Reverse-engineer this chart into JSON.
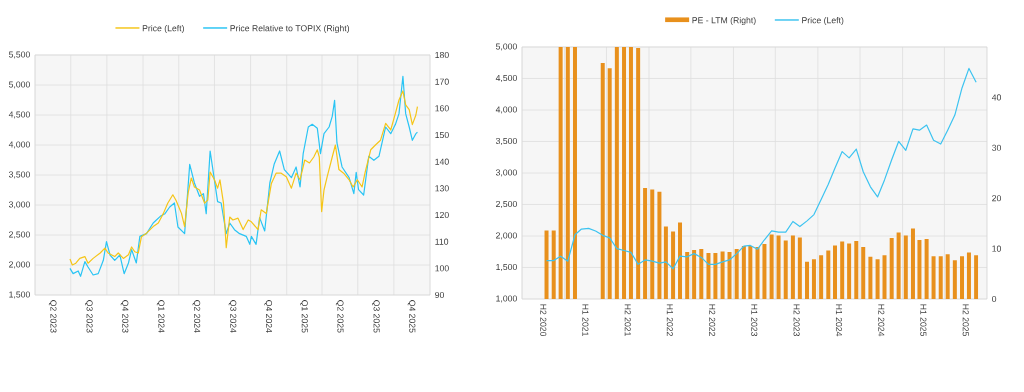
{
  "chart_data": [
    {
      "type": "line",
      "legend": "top",
      "grid": true,
      "xlim": [
        "2023-04-01",
        "2026-01-01"
      ],
      "xticks": [
        {
          "value": "2023-04-01",
          "label": null
        },
        {
          "value": "2023-05-16",
          "label": "Q2 2023"
        },
        {
          "value": "2023-07-01",
          "label": null
        },
        {
          "value": "2023-08-16",
          "label": "Q3 2023"
        },
        {
          "value": "2023-10-01",
          "label": null
        },
        {
          "value": "2023-11-15",
          "label": "Q4 2023"
        },
        {
          "value": "2024-01-01",
          "label": null
        },
        {
          "value": "2024-02-15",
          "label": "Q1 2024"
        },
        {
          "value": "2024-04-01",
          "label": null
        },
        {
          "value": "2024-05-16",
          "label": "Q2 2024"
        },
        {
          "value": "2024-07-01",
          "label": null
        },
        {
          "value": "2024-08-16",
          "label": "Q3 2024"
        },
        {
          "value": "2024-10-01",
          "label": null
        },
        {
          "value": "2024-11-15",
          "label": "Q4 2024"
        },
        {
          "value": "2025-01-01",
          "label": null
        },
        {
          "value": "2025-02-14",
          "label": "Q1 2025"
        },
        {
          "value": "2025-04-01",
          "label": null
        },
        {
          "value": "2025-05-16",
          "label": "Q2 2025"
        },
        {
          "value": "2025-07-01",
          "label": null
        },
        {
          "value": "2025-08-16",
          "label": "Q3 2025"
        },
        {
          "value": "2025-10-01",
          "label": null
        },
        {
          "value": "2025-11-15",
          "label": "Q4 2025"
        }
      ],
      "ylim": [
        1500,
        5500
      ],
      "yticks": [
        {
          "value": 1500,
          "label": "1,500"
        },
        {
          "value": 2000,
          "label": "2,000"
        },
        {
          "value": 2500,
          "label": "2,500"
        },
        {
          "value": 3000,
          "label": "3,000"
        },
        {
          "value": 3500,
          "label": "3,500"
        },
        {
          "value": 4000,
          "label": "4,000"
        },
        {
          "value": 4500,
          "label": "4,500"
        },
        {
          "value": 5000,
          "label": "5,000"
        },
        {
          "value": 5500,
          "label": "5,500"
        }
      ],
      "y2lim": [
        90,
        180
      ],
      "y2ticks": [
        90,
        100,
        110,
        120,
        130,
        140,
        150,
        160,
        170,
        180
      ],
      "series": [
        {
          "name": "Price (Left)",
          "color": "#f5c518",
          "x": [
            "2023-06-29",
            "2023-07-05",
            "2023-07-14",
            "2023-07-24",
            "2023-08-06",
            "2023-08-14",
            "2023-08-27",
            "2023-09-14",
            "2023-09-26",
            "2023-10-04",
            "2023-10-21",
            "2023-10-30",
            "2023-11-12",
            "2023-11-25",
            "2023-12-03",
            "2023-12-11",
            "2023-12-20",
            "2023-12-28",
            "2024-01-10",
            "2024-01-27",
            "2024-02-09",
            "2024-02-22",
            "2024-03-04",
            "2024-03-17",
            "2024-03-25",
            "2024-04-08",
            "2024-04-16",
            "2024-04-25",
            "2024-05-03",
            "2024-05-11",
            "2024-05-24",
            "2024-06-06",
            "2024-06-14",
            "2024-06-20",
            "2024-07-01",
            "2024-07-09",
            "2024-07-15",
            "2024-07-24",
            "2024-07-31",
            "2024-08-09",
            "2024-08-17",
            "2024-08-30",
            "2024-09-12",
            "2024-09-25",
            "2024-10-03",
            "2024-10-20",
            "2024-10-28",
            "2024-11-10",
            "2024-11-23",
            "2024-12-05",
            "2024-12-18",
            "2024-12-31",
            "2025-01-13",
            "2025-01-25",
            "2025-02-04",
            "2025-02-16",
            "2025-02-28",
            "2025-03-11",
            "2025-03-20",
            "2025-03-25",
            "2025-03-31",
            "2025-04-06",
            "2025-04-14",
            "2025-04-27",
            "2025-05-05",
            "2025-05-14",
            "2025-05-26",
            "2025-06-09",
            "2025-06-19",
            "2025-06-30",
            "2025-07-12",
            "2025-07-20",
            "2025-08-03",
            "2025-08-15",
            "2025-08-28",
            "2025-09-10",
            "2025-09-23",
            "2025-10-05",
            "2025-10-14",
            "2025-10-24",
            "2025-10-31",
            "2025-11-09",
            "2025-11-17",
            "2025-11-26",
            "2025-11-30"
          ],
          "values": [
            2100,
            2000,
            2030,
            2110,
            2140,
            2030,
            2110,
            2200,
            2280,
            2200,
            2140,
            2200,
            2110,
            2170,
            2300,
            2220,
            2200,
            2470,
            2530,
            2640,
            2700,
            2860,
            3030,
            3170,
            3080,
            2860,
            2640,
            3200,
            3450,
            3300,
            3250,
            3030,
            3080,
            3550,
            3420,
            3280,
            3420,
            3030,
            2290,
            2800,
            2750,
            2780,
            2590,
            2750,
            2720,
            2590,
            2920,
            2860,
            3360,
            3530,
            3530,
            3470,
            3280,
            3530,
            3420,
            3750,
            3700,
            3800,
            3920,
            3800,
            2890,
            3250,
            3470,
            3800,
            4000,
            3590,
            3530,
            3420,
            3300,
            3420,
            3300,
            3550,
            3920,
            4000,
            4080,
            4360,
            4250,
            4530,
            4750,
            4900,
            4670,
            4590,
            4340,
            4500,
            4640
          ]
        },
        {
          "name": "Price Relative to TOPIX (Right)",
          "color": "#29c4f4",
          "axis": "y2",
          "x": [
            "2023-06-29",
            "2023-07-07",
            "2023-07-20",
            "2023-07-26",
            "2023-08-06",
            "2023-08-14",
            "2023-08-27",
            "2023-09-09",
            "2023-09-22",
            "2023-09-30",
            "2023-10-09",
            "2023-10-21",
            "2023-11-03",
            "2023-11-14",
            "2023-11-25",
            "2023-12-03",
            "2023-12-15",
            "2023-12-24",
            "2024-01-10",
            "2024-01-27",
            "2024-02-14",
            "2024-02-26",
            "2024-03-09",
            "2024-03-21",
            "2024-03-30",
            "2024-04-16",
            "2024-04-29",
            "2024-05-11",
            "2024-05-24",
            "2024-06-03",
            "2024-06-10",
            "2024-06-20",
            "2024-07-01",
            "2024-07-09",
            "2024-07-18",
            "2024-07-31",
            "2024-08-09",
            "2024-08-21",
            "2024-09-03",
            "2024-09-20",
            "2024-09-29",
            "2024-10-03",
            "2024-10-15",
            "2024-10-24",
            "2024-11-06",
            "2024-11-19",
            "2024-11-30",
            "2024-12-14",
            "2024-12-26",
            "2025-01-13",
            "2025-01-25",
            "2025-02-04",
            "2025-02-12",
            "2025-02-25",
            "2025-03-07",
            "2025-03-20",
            "2025-03-28",
            "2025-04-06",
            "2025-04-19",
            "2025-04-27",
            "2025-05-03",
            "2025-05-09",
            "2025-05-22",
            "2025-06-09",
            "2025-06-21",
            "2025-06-27",
            "2025-07-03",
            "2025-07-16",
            "2025-07-29",
            "2025-08-11",
            "2025-08-24",
            "2025-09-10",
            "2025-09-23",
            "2025-10-05",
            "2025-10-14",
            "2025-10-24",
            "2025-10-31",
            "2025-11-09",
            "2025-11-17",
            "2025-11-26",
            "2025-11-30"
          ],
          "values": [
            100,
            98,
            99,
            97,
            102.5,
            100.5,
            97.5,
            98,
            103,
            110,
            105,
            103,
            105,
            98,
            102,
            107,
            102,
            112,
            113,
            117,
            119.5,
            120.5,
            123,
            124.5,
            115.5,
            113,
            139,
            132,
            127,
            128,
            120.5,
            144,
            133,
            125,
            124.5,
            113,
            117,
            114.5,
            113,
            112,
            109,
            112,
            109,
            119,
            114,
            132,
            139,
            144,
            137,
            134,
            138,
            130.5,
            143,
            153,
            154,
            152.5,
            143,
            150.5,
            153,
            157,
            163,
            147,
            138,
            134,
            128,
            136,
            129.5,
            127.5,
            142,
            140.5,
            142,
            153,
            150.5,
            154,
            158,
            172,
            158,
            153,
            148,
            150.5,
            151
          ]
        }
      ]
    },
    {
      "type": "bar",
      "legend": "top",
      "grid": true,
      "xlim": [
        "2020-07-01",
        "2026-01-01"
      ],
      "xticks": [
        {
          "value": "2020-07-01",
          "label": null
        },
        {
          "value": "2020-10-01",
          "label": "H2 2020"
        },
        {
          "value": "2021-01-01",
          "label": null
        },
        {
          "value": "2021-04-01",
          "label": "H1 2021"
        },
        {
          "value": "2021-07-01",
          "label": null
        },
        {
          "value": "2021-10-01",
          "label": "H2 2021"
        },
        {
          "value": "2022-01-01",
          "label": null
        },
        {
          "value": "2022-04-01",
          "label": "H1 2022"
        },
        {
          "value": "2022-07-01",
          "label": null
        },
        {
          "value": "2022-10-01",
          "label": "H2 2022"
        },
        {
          "value": "2023-01-01",
          "label": null
        },
        {
          "value": "2023-04-01",
          "label": "H1 2023"
        },
        {
          "value": "2023-07-01",
          "label": null
        },
        {
          "value": "2023-10-01",
          "label": "H2 2023"
        },
        {
          "value": "2024-01-01",
          "label": null
        },
        {
          "value": "2024-04-01",
          "label": "H1 2024"
        },
        {
          "value": "2024-07-01",
          "label": null
        },
        {
          "value": "2024-10-01",
          "label": "H2 2024"
        },
        {
          "value": "2025-01-01",
          "label": null
        },
        {
          "value": "2025-04-01",
          "label": "H1 2025"
        },
        {
          "value": "2025-07-01",
          "label": null
        },
        {
          "value": "2025-10-01",
          "label": "H2 2025"
        }
      ],
      "ylim": [
        1000,
        5000
      ],
      "yticks": [
        {
          "value": 1000,
          "label": "1,000"
        },
        {
          "value": 1500,
          "label": "1,500"
        },
        {
          "value": 2000,
          "label": "2,000"
        },
        {
          "value": 2500,
          "label": "2,500"
        },
        {
          "value": 3000,
          "label": "3,000"
        },
        {
          "value": 3500,
          "label": "3,500"
        },
        {
          "value": 4000,
          "label": "4,000"
        },
        {
          "value": 4500,
          "label": "4,500"
        },
        {
          "value": 5000,
          "label": "5,000"
        }
      ],
      "y2lim": [
        0,
        50
      ],
      "y2ticks": [
        0,
        10,
        20,
        30,
        40
      ],
      "x": [
        "2020-10-15",
        "2020-11-15",
        "2020-12-15",
        "2021-01-15",
        "2021-02-15",
        "2021-03-15",
        "2021-04-15",
        "2021-05-15",
        "2021-06-15",
        "2021-07-15",
        "2021-08-15",
        "2021-09-15",
        "2021-10-15",
        "2021-11-15",
        "2021-12-15",
        "2022-01-15",
        "2022-02-15",
        "2022-03-15",
        "2022-04-15",
        "2022-05-15",
        "2022-06-15",
        "2022-07-15",
        "2022-08-15",
        "2022-09-15",
        "2022-10-15",
        "2022-11-15",
        "2022-12-15",
        "2023-01-15",
        "2023-02-15",
        "2023-03-15",
        "2023-04-15",
        "2023-05-15",
        "2023-06-15",
        "2023-07-15",
        "2023-08-15",
        "2023-09-15",
        "2023-10-15",
        "2023-11-15",
        "2023-12-15",
        "2024-01-15",
        "2024-02-15",
        "2024-03-15",
        "2024-04-15",
        "2024-05-15",
        "2024-06-15",
        "2024-07-15",
        "2024-08-15",
        "2024-09-15",
        "2024-10-15",
        "2024-11-15",
        "2024-12-15",
        "2025-01-15",
        "2025-02-15",
        "2025-03-15",
        "2025-04-15",
        "2025-05-15",
        "2025-06-15",
        "2025-07-15",
        "2025-08-15",
        "2025-09-15",
        "2025-10-15",
        "2025-11-15"
      ],
      "series": [
        {
          "name": "PE - LTM (Right)",
          "type": "bar",
          "axis": "y2",
          "color": "#e8901c",
          "values": [
            13.6,
            13.6,
            50,
            50,
            50,
            null,
            null,
            null,
            46.8,
            45.8,
            50,
            50,
            50,
            49.8,
            22.0,
            21.7,
            21.3,
            14.4,
            13.4,
            15.2,
            9.3,
            9.7,
            9.9,
            9.1,
            9.1,
            9.4,
            9.3,
            9.9,
            10.5,
            10.5,
            10.3,
            10.9,
            12.8,
            12.6,
            11.6,
            12.6,
            12.2,
            7.4,
            7.9,
            8.7,
            9.6,
            10.6,
            11.4,
            11.0,
            11.5,
            10.3,
            8.4,
            7.9,
            8.7,
            12.1,
            13.2,
            12.6,
            14.0,
            11.7,
            11.9,
            8.5,
            8.5,
            8.9,
            7.7,
            8.5,
            9.2,
            8.7
          ]
        },
        {
          "name": "Price (Left)",
          "type": "line",
          "color": "#3cc3f0",
          "values": [
            1610,
            1610,
            1680,
            1600,
            2020,
            2110,
            2120,
            2080,
            2010,
            1970,
            1800,
            1770,
            1740,
            1550,
            1620,
            1600,
            1570,
            1590,
            1480,
            1680,
            1670,
            1720,
            1660,
            1550,
            1550,
            1590,
            1620,
            1720,
            1840,
            1850,
            1790,
            1940,
            2080,
            2060,
            2060,
            2230,
            2150,
            2240,
            2340,
            2580,
            2820,
            3080,
            3340,
            3240,
            3380,
            3020,
            2780,
            2620,
            2890,
            3210,
            3500,
            3360,
            3700,
            3680,
            3760,
            3520,
            3460,
            3680,
            3920,
            4350,
            4660,
            4440
          ]
        }
      ]
    }
  ]
}
